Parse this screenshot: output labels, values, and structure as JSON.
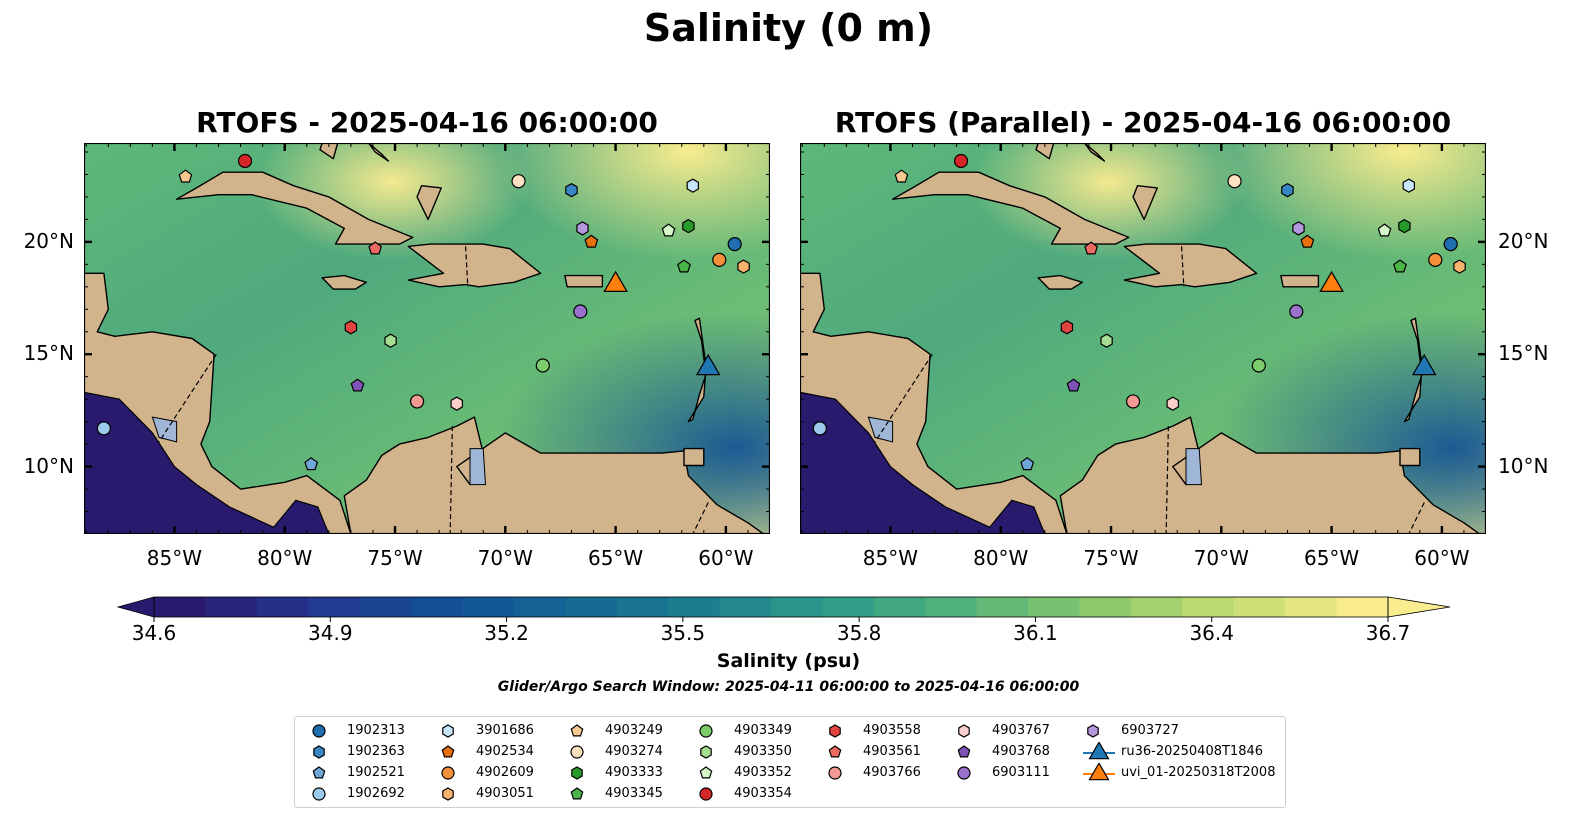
{
  "title": "Salinity (0 m)",
  "panels": [
    {
      "title": "RTOFS - 2025-04-16 06:00:00",
      "lat_side": "left"
    },
    {
      "title": "RTOFS (Parallel) - 2025-04-16 06:00:00",
      "lat_side": "right"
    }
  ],
  "map": {
    "lon_range": [
      -89.1,
      -58.0
    ],
    "lat_range": [
      7.0,
      24.4
    ],
    "lon_ticks": [
      "85°W",
      "80°W",
      "75°W",
      "70°W",
      "65°W",
      "60°W"
    ],
    "lat_ticks": [
      "10°N",
      "15°N",
      "20°N"
    ],
    "land_color": "#d2b48c",
    "lake_color": "#9fb6d6"
  },
  "colorbar": {
    "label": "Salinity (psu)",
    "ticks": [
      "34.6",
      "34.9",
      "35.2",
      "35.5",
      "35.8",
      "36.1",
      "36.4",
      "36.7"
    ],
    "min": 34.6,
    "max": 36.7,
    "colormap": "haline",
    "colors": [
      "#2a1a6e",
      "#253690",
      "#134f96",
      "#146893",
      "#1d7f8f",
      "#2f9c88",
      "#55b47a",
      "#8bc86a",
      "#c4dc72",
      "#f8ec8e"
    ]
  },
  "search_window": "Glider/Argo Search Window: 2025-04-11 06:00:00 to 2025-04-16 06:00:00",
  "legend": {
    "columns": [
      [
        {
          "label": "1902313",
          "shape": "circle",
          "color": "#1f6fb0"
        },
        {
          "label": "1902363",
          "shape": "hexagon",
          "color": "#3a86c4"
        },
        {
          "label": "1902521",
          "shape": "pentagon",
          "color": "#6fa8d8"
        },
        {
          "label": "1902692",
          "shape": "circle",
          "color": "#9ccbed"
        }
      ],
      [
        {
          "label": "3901686",
          "shape": "hexagon",
          "color": "#c7e6fb"
        },
        {
          "label": "4902534",
          "shape": "pentagon",
          "color": "#e86f0e"
        },
        {
          "label": "4902609",
          "shape": "circle",
          "color": "#f4903a"
        },
        {
          "label": "4903051",
          "shape": "hexagon",
          "color": "#f8b36c"
        }
      ],
      [
        {
          "label": "4903249",
          "shape": "pentagon",
          "color": "#f8c891"
        },
        {
          "label": "4903274",
          "shape": "circle",
          "color": "#fde2c2"
        },
        {
          "label": "4903333",
          "shape": "hexagon",
          "color": "#279a2a"
        },
        {
          "label": "4903345",
          "shape": "pentagon",
          "color": "#4bb548"
        }
      ],
      [
        {
          "label": "4903349",
          "shape": "circle",
          "color": "#7ccc6b"
        },
        {
          "label": "4903350",
          "shape": "hexagon",
          "color": "#a5de93"
        },
        {
          "label": "4903352",
          "shape": "pentagon",
          "color": "#d3f5c8"
        },
        {
          "label": "4903354",
          "shape": "circle",
          "color": "#d62728"
        }
      ],
      [
        {
          "label": "4903558",
          "shape": "hexagon",
          "color": "#e2453f"
        },
        {
          "label": "4903561",
          "shape": "pentagon",
          "color": "#ec6a61"
        },
        {
          "label": "4903766",
          "shape": "circle",
          "color": "#f39a94"
        }
      ],
      [
        {
          "label": "4903767",
          "shape": "hexagon",
          "color": "#fbd0cc"
        },
        {
          "label": "4903768",
          "shape": "pentagon",
          "color": "#7f52b7"
        },
        {
          "label": "6903111",
          "shape": "circle",
          "color": "#9a72cb"
        }
      ],
      [
        {
          "label": "6903727",
          "shape": "hexagon",
          "color": "#b497dc"
        },
        {
          "label": "ru36-20250408T1846",
          "shape": "triangle",
          "color": "#1f77b4"
        },
        {
          "label": "uvi_01-20250318T2008",
          "shape": "triangle",
          "color": "#ff7f0e"
        }
      ]
    ]
  },
  "floats": [
    {
      "id": "4903354",
      "lon": -81.8,
      "lat": 23.6
    },
    {
      "id": "4903249",
      "lon": -84.5,
      "lat": 22.9
    },
    {
      "id": "4903274",
      "lon": -69.4,
      "lat": 22.7
    },
    {
      "id": "1902363",
      "lon": -67.0,
      "lat": 22.3
    },
    {
      "id": "3901686",
      "lon": -61.5,
      "lat": 22.5
    },
    {
      "id": "6903727",
      "lon": -66.5,
      "lat": 20.6
    },
    {
      "id": "4903352",
      "lon": -62.6,
      "lat": 20.5
    },
    {
      "id": "4903333",
      "lon": -61.7,
      "lat": 20.7
    },
    {
      "id": "4902534",
      "lon": -66.1,
      "lat": 20.0
    },
    {
      "id": "4903561",
      "lon": -75.9,
      "lat": 19.7
    },
    {
      "id": "1902313",
      "lon": -59.6,
      "lat": 19.9
    },
    {
      "id": "4902609",
      "lon": -60.3,
      "lat": 19.2
    },
    {
      "id": "4903051",
      "lon": -59.2,
      "lat": 18.9
    },
    {
      "id": "4903345",
      "lon": -61.9,
      "lat": 18.9
    },
    {
      "id": "6903111",
      "lon": -66.6,
      "lat": 16.9
    },
    {
      "id": "4903558",
      "lon": -77.0,
      "lat": 16.2
    },
    {
      "id": "4903350",
      "lon": -75.2,
      "lat": 15.6
    },
    {
      "id": "4903349",
      "lon": -68.3,
      "lat": 14.5
    },
    {
      "id": "4903768",
      "lon": -76.7,
      "lat": 13.6
    },
    {
      "id": "4903766",
      "lon": -74.0,
      "lat": 12.9
    },
    {
      "id": "4903767",
      "lon": -72.2,
      "lat": 12.8
    },
    {
      "id": "1902692",
      "lon": -88.2,
      "lat": 11.7
    },
    {
      "id": "1902521",
      "lon": -78.8,
      "lat": 10.1
    }
  ],
  "gliders": [
    {
      "id": "uvi_01-20250318T2008",
      "lon": -65.0,
      "lat": 18.2
    },
    {
      "id": "ru36-20250408T1846",
      "lon": -60.8,
      "lat": 14.5
    }
  ]
}
